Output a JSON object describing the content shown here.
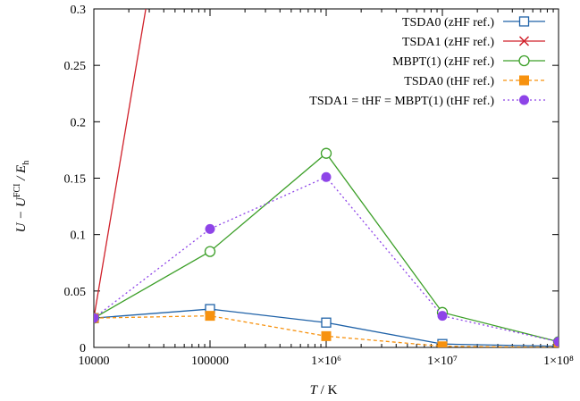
{
  "chart_data": {
    "type": "line",
    "title": "",
    "xscale": "log",
    "xlim": [
      10000,
      100000000
    ],
    "ylim": [
      0,
      0.3
    ],
    "grid": false,
    "legend_position": "top-right",
    "x_ticks": [
      {
        "value": 10000,
        "label": "10000"
      },
      {
        "value": 100000,
        "label": "100000"
      },
      {
        "value": 1000000,
        "label": "1×10⁶"
      },
      {
        "value": 10000000,
        "label": "1×10⁷"
      },
      {
        "value": 100000000,
        "label": "1×10⁸"
      }
    ],
    "y_ticks": [
      {
        "value": 0,
        "label": "0"
      },
      {
        "value": 0.05,
        "label": "0.05"
      },
      {
        "value": 0.1,
        "label": "0.1"
      },
      {
        "value": 0.15,
        "label": "0.15"
      },
      {
        "value": 0.2,
        "label": "0.2"
      },
      {
        "value": 0.25,
        "label": "0.25"
      },
      {
        "value": 0.3,
        "label": "0.3"
      }
    ],
    "xlabel": {
      "main": "T",
      "unit": " / K"
    },
    "ylabel": {
      "prefix": "U − U",
      "sup": "FCI",
      "sep": " / E",
      "sub": "h"
    },
    "series": [
      {
        "name": "TSDA0 (zHF ref.)",
        "color": "#1f62a8",
        "marker": "open-square",
        "dash": "solid",
        "x": [
          10000,
          100000,
          1000000,
          10000000,
          100000000
        ],
        "y": [
          0.026,
          0.034,
          0.022,
          0.003,
          0.001
        ]
      },
      {
        "name": "TSDA1 (zHF ref.)",
        "color": "#d0202a",
        "marker": "cross",
        "dash": "solid",
        "x": [
          10000,
          28000
        ],
        "y": [
          0.026,
          0.3
        ]
      },
      {
        "name": "MBPT(1) (zHF ref.)",
        "color": "#3c9f28",
        "marker": "open-circle",
        "dash": "solid",
        "x": [
          10000,
          100000,
          1000000,
          10000000,
          100000000
        ],
        "y": [
          0.026,
          0.085,
          0.172,
          0.031,
          0.005
        ]
      },
      {
        "name": "TSDA0 (tHF ref.)",
        "color": "#f7920f",
        "marker": "filled-square",
        "dash": "dashed",
        "x": [
          10000,
          100000,
          1000000,
          10000000,
          100000000
        ],
        "y": [
          0.026,
          0.028,
          0.01,
          0.001,
          0.0
        ]
      },
      {
        "name": "TSDA1 = tHF = MBPT(1) (tHF ref.)",
        "color": "#8e44e8",
        "marker": "filled-circle",
        "dash": "dotted",
        "x": [
          10000,
          100000,
          1000000,
          10000000,
          100000000
        ],
        "y": [
          0.026,
          0.105,
          0.151,
          0.028,
          0.005
        ]
      }
    ]
  }
}
